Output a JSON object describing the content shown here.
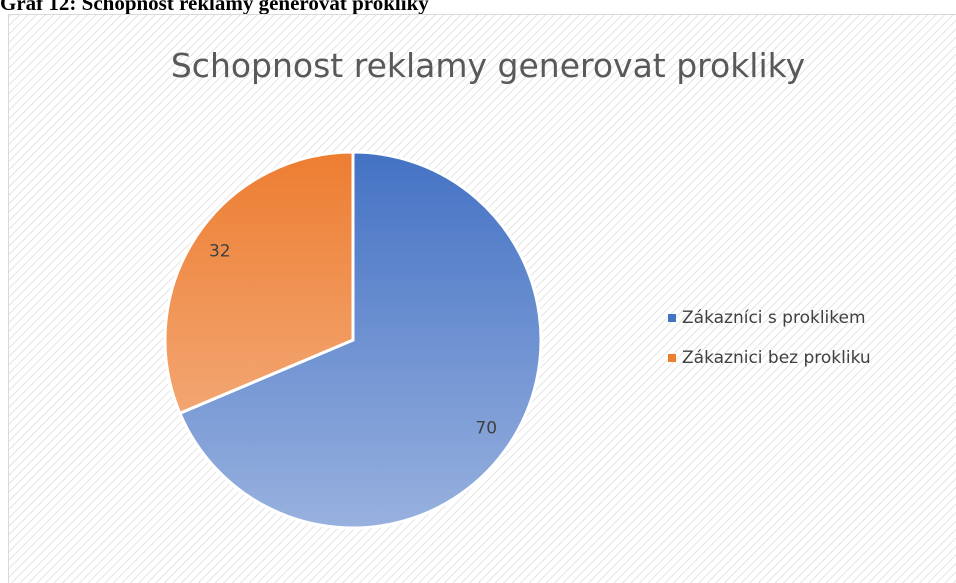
{
  "caption": "Graf 12: Schopnost reklamy generovat prokliky",
  "chart_data": {
    "type": "pie",
    "title": "Schopnost reklamy generovat prokliky",
    "categories": [
      "Zákazníci s proklikem",
      "Zákaznici bez prokliku"
    ],
    "values": [
      70,
      32
    ],
    "colors": [
      "#4472c4",
      "#ed7d31"
    ],
    "legend": "right"
  }
}
